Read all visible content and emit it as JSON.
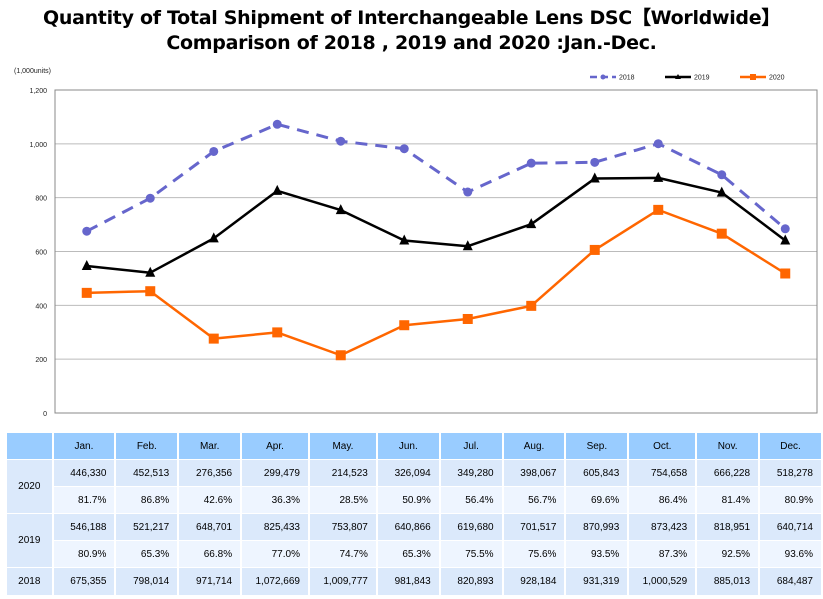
{
  "header": {
    "title_line1": "Quantity of Total Shipment of Interchangeable Lens DSC【Worldwide】",
    "title_line2": "Comparison of 2018 , 2019 and 2020 :Jan.-Dec."
  },
  "chart_data": {
    "type": "line",
    "title": "Quantity of Total Shipment of Interchangeable Lens DSC【Worldwide】 Comparison of 2018 , 2019 and 2020 :Jan.-Dec.",
    "unit_label": "(1,000units)",
    "xlabel": "",
    "ylabel": "(1,000units)",
    "ylim": [
      0,
      1200
    ],
    "yticks": [
      0,
      200,
      400,
      600,
      800,
      1000,
      1200
    ],
    "ytick_labels": [
      "0",
      "200",
      "400",
      "600",
      "800",
      "1,000",
      "1,200"
    ],
    "grid": true,
    "legend_position": "top-right",
    "categories": [
      "Jan.",
      "Feb.",
      "Mar.",
      "Apr.",
      "May.",
      "Jun.",
      "Jul.",
      "Aug.",
      "Sep.",
      "Oct.",
      "Nov.",
      "Dec."
    ],
    "series": [
      {
        "name": "2018",
        "color": "#6666cc",
        "style": "dashed",
        "marker": "circle",
        "values": [
          675.355,
          798.014,
          971.714,
          1072.669,
          1009.777,
          981.843,
          820.893,
          928.184,
          931.319,
          1000.529,
          885.013,
          684.487
        ]
      },
      {
        "name": "2019",
        "color": "#000000",
        "style": "solid",
        "marker": "triangle",
        "values": [
          546.188,
          521.217,
          648.701,
          825.433,
          753.807,
          640.866,
          619.68,
          701.517,
          870.993,
          873.423,
          818.951,
          640.714
        ]
      },
      {
        "name": "2020",
        "color": "#ff6600",
        "style": "solid",
        "marker": "square",
        "values": [
          446.33,
          452.513,
          276.356,
          299.479,
          214.523,
          326.094,
          349.28,
          398.067,
          605.843,
          754.658,
          666.228,
          518.278
        ]
      }
    ]
  },
  "table": {
    "months": [
      "Jan.",
      "Feb.",
      "Mar.",
      "Apr.",
      "May.",
      "Jun.",
      "Jul.",
      "Aug.",
      "Sep.",
      "Oct.",
      "Nov.",
      "Dec."
    ],
    "rows": [
      {
        "year": "2020",
        "units": [
          "446,330",
          "452,513",
          "276,356",
          "299,479",
          "214,523",
          "326,094",
          "349,280",
          "398,067",
          "605,843",
          "754,658",
          "666,228",
          "518,278"
        ],
        "pct": [
          "81.7%",
          "86.8%",
          "42.6%",
          "36.3%",
          "28.5%",
          "50.9%",
          "56.4%",
          "56.7%",
          "69.6%",
          "86.4%",
          "81.4%",
          "80.9%"
        ]
      },
      {
        "year": "2019",
        "units": [
          "546,188",
          "521,217",
          "648,701",
          "825,433",
          "753,807",
          "640,866",
          "619,680",
          "701,517",
          "870,993",
          "873,423",
          "818,951",
          "640,714"
        ],
        "pct": [
          "80.9%",
          "65.3%",
          "66.8%",
          "77.0%",
          "74.7%",
          "65.3%",
          "75.5%",
          "75.6%",
          "93.5%",
          "87.3%",
          "92.5%",
          "93.6%"
        ]
      },
      {
        "year": "2018",
        "units": [
          "675,355",
          "798,014",
          "971,714",
          "1,072,669",
          "1,009,777",
          "981,843",
          "820,893",
          "928,184",
          "931,319",
          "1,000,529",
          "885,013",
          "684,487"
        ]
      }
    ]
  }
}
